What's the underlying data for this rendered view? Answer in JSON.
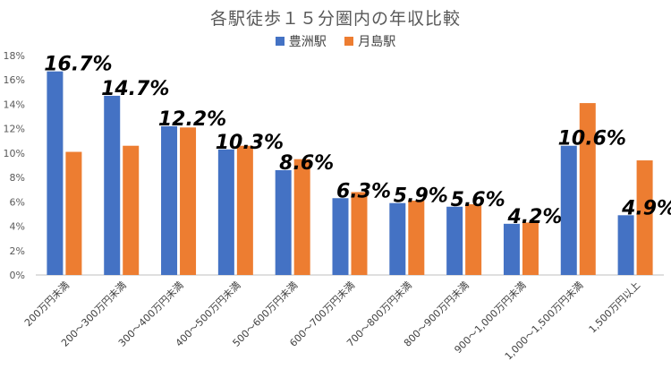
{
  "chart_data": {
    "type": "bar",
    "title": "各駅徒歩１５分圏内の年収比較",
    "xlabel": "",
    "ylabel": "",
    "ylim": [
      0,
      18
    ],
    "y_tick_step": 2,
    "y_tick_format": "percent",
    "grid": false,
    "legend_position": "top",
    "categories": [
      "200万円未満",
      "200～300万円未満",
      "300～400万円未満",
      "400～500万円未満",
      "500～600万円未満",
      "600～700万円未満",
      "700～800万円未満",
      "800～900万円未満",
      "900～1,000万円未満",
      "1,000～1,500万円未満",
      "1,500万円以上"
    ],
    "series": [
      {
        "name": "豊洲駅",
        "color": "#4472C4",
        "values": [
          16.7,
          14.7,
          12.2,
          10.3,
          8.6,
          6.3,
          5.9,
          5.6,
          4.2,
          10.6,
          4.9
        ],
        "data_labels": [
          "16.7%",
          "14.7%",
          "12.2%",
          "10.3%",
          "8.6%",
          "6.3%",
          "5.9%",
          "5.6%",
          "4.2%",
          "10.6%",
          "4.9%"
        ]
      },
      {
        "name": "月島駅",
        "color": "#ED7D31",
        "values": [
          10.1,
          10.6,
          12.1,
          10.6,
          9.5,
          6.8,
          6.1,
          5.8,
          4.3,
          14.1,
          9.4
        ]
      }
    ]
  }
}
